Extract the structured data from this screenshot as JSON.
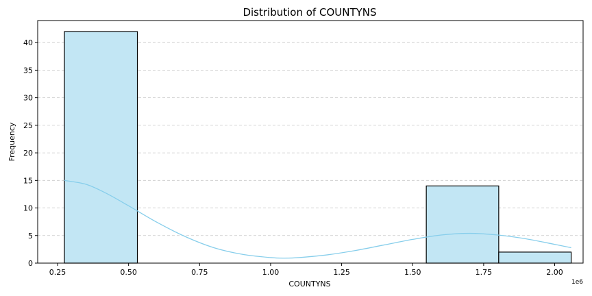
{
  "chart_data": {
    "type": "bar",
    "title": "Distribution of COUNTYNS",
    "xlabel": "COUNTYNS",
    "ylabel": "Frequency",
    "x_offset_label": "1e6",
    "xlim": [
      0.18,
      2.1
    ],
    "ylim": [
      0,
      44
    ],
    "x_ticks": [
      0.25,
      0.5,
      0.75,
      1.0,
      1.25,
      1.5,
      1.75,
      2.0
    ],
    "x_tick_labels": [
      "0.25",
      "0.50",
      "0.75",
      "1.00",
      "1.25",
      "1.50",
      "1.75",
      "2.00"
    ],
    "y_ticks": [
      0,
      5,
      10,
      15,
      20,
      25,
      30,
      35,
      40
    ],
    "y_tick_labels": [
      "0",
      "5",
      "10",
      "15",
      "20",
      "25",
      "30",
      "35",
      "40"
    ],
    "grid": "y-dashed",
    "bins": [
      {
        "x0": 0.274,
        "x1": 0.531,
        "count": 42
      },
      {
        "x0": 1.548,
        "x1": 1.803,
        "count": 14
      },
      {
        "x0": 1.803,
        "x1": 2.058,
        "count": 2
      }
    ],
    "kde": {
      "x": [
        0.274,
        0.35,
        0.42,
        0.5,
        0.6,
        0.7,
        0.8,
        0.9,
        1.0,
        1.05,
        1.1,
        1.2,
        1.3,
        1.4,
        1.5,
        1.6,
        1.7,
        1.8,
        1.9,
        2.0,
        2.058
      ],
      "y": [
        15.0,
        14.3,
        12.7,
        10.4,
        7.4,
        4.8,
        2.8,
        1.6,
        1.0,
        0.9,
        1.0,
        1.5,
        2.3,
        3.3,
        4.3,
        5.1,
        5.4,
        5.1,
        4.4,
        3.4,
        2.8
      ]
    },
    "colors": {
      "bar_fill": "#c2e6f4",
      "bar_edge": "#000000",
      "kde_line": "#87ceeb",
      "grid": "#c8c8c8"
    }
  }
}
